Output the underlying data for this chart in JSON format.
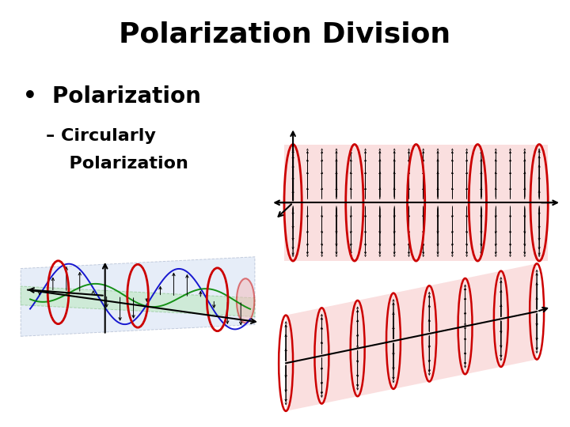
{
  "title": "Polarization Division",
  "bullet": "Polarization",
  "sub_bullet_line1": "– Circularly",
  "sub_bullet_line2": "  Polarization",
  "bg_color": "#ffffff",
  "title_fontsize": 26,
  "bullet_fontsize": 20,
  "sub_fontsize": 16,
  "title_color": "#000000",
  "bullet_color": "#000000",
  "red_color": "#cc0000",
  "pink_color": "#f5b8b8",
  "blue_color": "#0000cc",
  "green_color": "#008800"
}
